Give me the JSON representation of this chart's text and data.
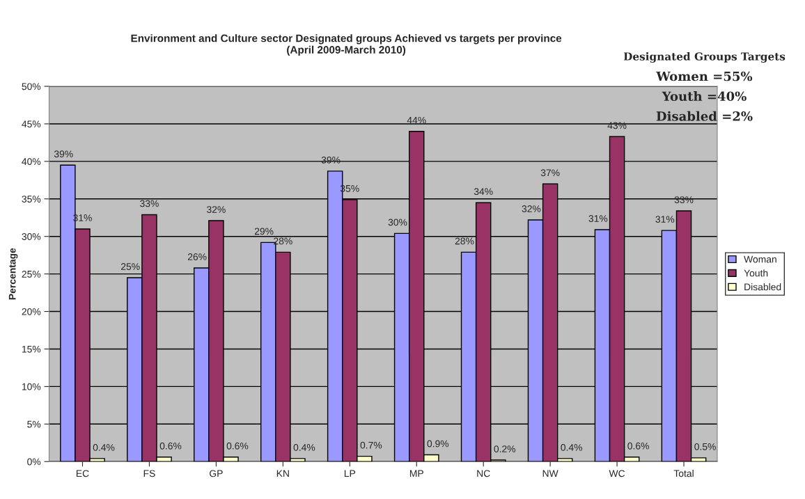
{
  "chart_data": {
    "type": "bar",
    "title": "Environment and Culture sector Designated groups Achieved vs targets per province\n(April 2009-March 2010)",
    "ylabel": "Percentage",
    "categories": [
      "EC",
      "FS",
      "GP",
      "KN",
      "LP",
      "MP",
      "NC",
      "NW",
      "WC",
      "Total"
    ],
    "series": [
      {
        "name": "Woman",
        "color": "#9999ff",
        "values": [
          39.5,
          24.5,
          25.8,
          29.2,
          38.7,
          30.4,
          27.9,
          32.2,
          30.9,
          30.8
        ],
        "value_labels": [
          "39%",
          "25%",
          "26%",
          "29%",
          "39%",
          "30%",
          "28%",
          "32%",
          "31%",
          "31%"
        ]
      },
      {
        "name": "Youth",
        "color": "#993366",
        "values": [
          31.0,
          32.9,
          32.1,
          27.9,
          34.9,
          44.0,
          34.5,
          37.0,
          43.3,
          33.4
        ],
        "value_labels": [
          "31%",
          "33%",
          "32%",
          "28%",
          "35%",
          "44%",
          "34%",
          "37%",
          "43%",
          "33%"
        ]
      },
      {
        "name": "Disabled",
        "color": "#ffffcc",
        "values": [
          0.4,
          0.6,
          0.6,
          0.4,
          0.7,
          0.9,
          0.2,
          0.4,
          0.6,
          0.5
        ],
        "value_labels": [
          "0.4%",
          "0.6%",
          "0.6%",
          "0.4%",
          "0.7%",
          "0.9%",
          "0.2%",
          "0.4%",
          "0.6%",
          "0.5%"
        ]
      }
    ],
    "ylim": [
      0,
      50
    ],
    "yticks": [
      {
        "value": 0,
        "label": "0%"
      },
      {
        "value": 5,
        "label": "5%"
      },
      {
        "value": 10,
        "label": "10%"
      },
      {
        "value": 15,
        "label": "15%"
      },
      {
        "value": 20,
        "label": "20%"
      },
      {
        "value": 25,
        "label": "25%"
      },
      {
        "value": 30,
        "label": "30%"
      },
      {
        "value": 35,
        "label": "35%"
      },
      {
        "value": 40,
        "label": "40%"
      },
      {
        "value": 45,
        "label": "45%"
      },
      {
        "value": 50,
        "label": "50%"
      }
    ],
    "grid": "y",
    "legend": "right",
    "annotations": [
      "Designated Groups Targets",
      "Women =55%",
      "Youth =40%",
      "Disabled =2%"
    ]
  }
}
